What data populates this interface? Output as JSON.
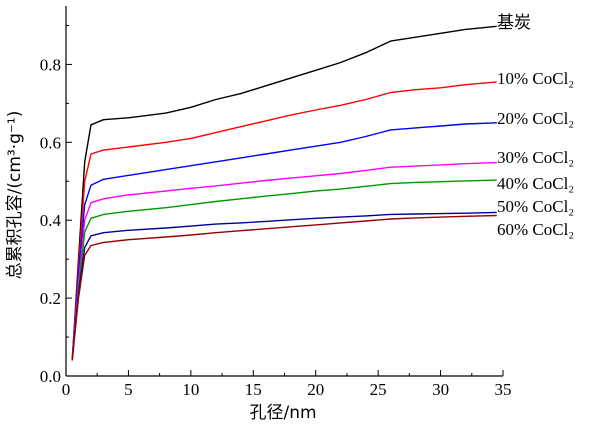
{
  "chart_data": {
    "type": "line",
    "xlabel": "孔径/nm",
    "ylabel": "总累积孔容/(cm³·g⁻¹)",
    "xlim": [
      0,
      35
    ],
    "ylim": [
      0,
      0.95
    ],
    "xticks": [
      0,
      5,
      10,
      15,
      20,
      25,
      30,
      35
    ],
    "yticks": [
      0.0,
      0.2,
      0.4,
      0.6,
      0.8
    ],
    "grid": false,
    "legend": "labels at line ends (right)",
    "series": [
      {
        "name": "基炭",
        "color": "#000000",
        "points": [
          [
            0.5,
            0.04
          ],
          [
            1.0,
            0.3
          ],
          [
            1.5,
            0.55
          ],
          [
            2.0,
            0.645
          ],
          [
            3,
            0.658
          ],
          [
            5,
            0.663
          ],
          [
            8,
            0.675
          ],
          [
            10,
            0.69
          ],
          [
            12,
            0.71
          ],
          [
            14,
            0.725
          ],
          [
            16,
            0.745
          ],
          [
            18,
            0.765
          ],
          [
            20,
            0.785
          ],
          [
            22,
            0.805
          ],
          [
            24,
            0.83
          ],
          [
            26,
            0.86
          ],
          [
            28,
            0.87
          ],
          [
            30,
            0.88
          ],
          [
            32,
            0.89
          ],
          [
            34.5,
            0.898
          ]
        ]
      },
      {
        "name": "10% CoCl₂",
        "color": "#ff0000",
        "points": [
          [
            0.5,
            0.04
          ],
          [
            1.0,
            0.28
          ],
          [
            1.5,
            0.5
          ],
          [
            2.0,
            0.57
          ],
          [
            3,
            0.58
          ],
          [
            5,
            0.588
          ],
          [
            8,
            0.6
          ],
          [
            10,
            0.61
          ],
          [
            12,
            0.625
          ],
          [
            14,
            0.64
          ],
          [
            16,
            0.655
          ],
          [
            18,
            0.67
          ],
          [
            20,
            0.683
          ],
          [
            22,
            0.695
          ],
          [
            24,
            0.71
          ],
          [
            26,
            0.728
          ],
          [
            28,
            0.735
          ],
          [
            30,
            0.74
          ],
          [
            32,
            0.748
          ],
          [
            34.5,
            0.755
          ]
        ]
      },
      {
        "name": "20% CoCl₂",
        "color": "#0000ff",
        "points": [
          [
            0.5,
            0.04
          ],
          [
            1.0,
            0.26
          ],
          [
            1.5,
            0.44
          ],
          [
            2.0,
            0.49
          ],
          [
            3,
            0.505
          ],
          [
            5,
            0.515
          ],
          [
            8,
            0.53
          ],
          [
            10,
            0.54
          ],
          [
            12,
            0.55
          ],
          [
            14,
            0.56
          ],
          [
            16,
            0.57
          ],
          [
            18,
            0.58
          ],
          [
            20,
            0.59
          ],
          [
            22,
            0.6
          ],
          [
            24,
            0.615
          ],
          [
            26,
            0.632
          ],
          [
            28,
            0.637
          ],
          [
            30,
            0.642
          ],
          [
            32,
            0.647
          ],
          [
            34.5,
            0.65
          ]
        ]
      },
      {
        "name": "30% CoCl₂",
        "color": "#ff00ff",
        "points": [
          [
            0.5,
            0.04
          ],
          [
            1.0,
            0.24
          ],
          [
            1.5,
            0.4
          ],
          [
            2.0,
            0.445
          ],
          [
            3,
            0.455
          ],
          [
            5,
            0.465
          ],
          [
            8,
            0.475
          ],
          [
            10,
            0.482
          ],
          [
            12,
            0.488
          ],
          [
            14,
            0.495
          ],
          [
            16,
            0.502
          ],
          [
            18,
            0.508
          ],
          [
            20,
            0.514
          ],
          [
            22,
            0.52
          ],
          [
            24,
            0.528
          ],
          [
            26,
            0.536
          ],
          [
            28,
            0.539
          ],
          [
            30,
            0.542
          ],
          [
            32,
            0.545
          ],
          [
            34.5,
            0.548
          ]
        ]
      },
      {
        "name": "40% CoCl₂",
        "color": "#009900",
        "points": [
          [
            0.5,
            0.04
          ],
          [
            1.0,
            0.22
          ],
          [
            1.5,
            0.37
          ],
          [
            2.0,
            0.405
          ],
          [
            3,
            0.415
          ],
          [
            5,
            0.423
          ],
          [
            8,
            0.432
          ],
          [
            10,
            0.44
          ],
          [
            12,
            0.448
          ],
          [
            14,
            0.455
          ],
          [
            16,
            0.462
          ],
          [
            18,
            0.468
          ],
          [
            20,
            0.475
          ],
          [
            22,
            0.48
          ],
          [
            24,
            0.487
          ],
          [
            26,
            0.494
          ],
          [
            28,
            0.497
          ],
          [
            30,
            0.499
          ],
          [
            32,
            0.501
          ],
          [
            34.5,
            0.503
          ]
        ]
      },
      {
        "name": "50% CoCl₂",
        "color": "#000099",
        "points": [
          [
            0.5,
            0.04
          ],
          [
            1.0,
            0.21
          ],
          [
            1.5,
            0.33
          ],
          [
            2.0,
            0.36
          ],
          [
            3,
            0.368
          ],
          [
            5,
            0.374
          ],
          [
            8,
            0.38
          ],
          [
            10,
            0.385
          ],
          [
            12,
            0.39
          ],
          [
            14,
            0.393
          ],
          [
            16,
            0.397
          ],
          [
            18,
            0.401
          ],
          [
            20,
            0.405
          ],
          [
            22,
            0.408
          ],
          [
            24,
            0.411
          ],
          [
            26,
            0.415
          ],
          [
            28,
            0.416
          ],
          [
            30,
            0.417
          ],
          [
            32,
            0.418
          ],
          [
            34.5,
            0.42
          ]
        ]
      },
      {
        "name": "60% CoCl₂",
        "color": "#990000",
        "points": [
          [
            0.5,
            0.04
          ],
          [
            1.0,
            0.2
          ],
          [
            1.5,
            0.31
          ],
          [
            2.0,
            0.335
          ],
          [
            3,
            0.343
          ],
          [
            5,
            0.35
          ],
          [
            8,
            0.357
          ],
          [
            10,
            0.362
          ],
          [
            12,
            0.368
          ],
          [
            14,
            0.373
          ],
          [
            16,
            0.378
          ],
          [
            18,
            0.383
          ],
          [
            20,
            0.388
          ],
          [
            22,
            0.393
          ],
          [
            24,
            0.398
          ],
          [
            26,
            0.403
          ],
          [
            28,
            0.406
          ],
          [
            30,
            0.408
          ],
          [
            32,
            0.41
          ],
          [
            34.5,
            0.412
          ]
        ]
      }
    ]
  }
}
